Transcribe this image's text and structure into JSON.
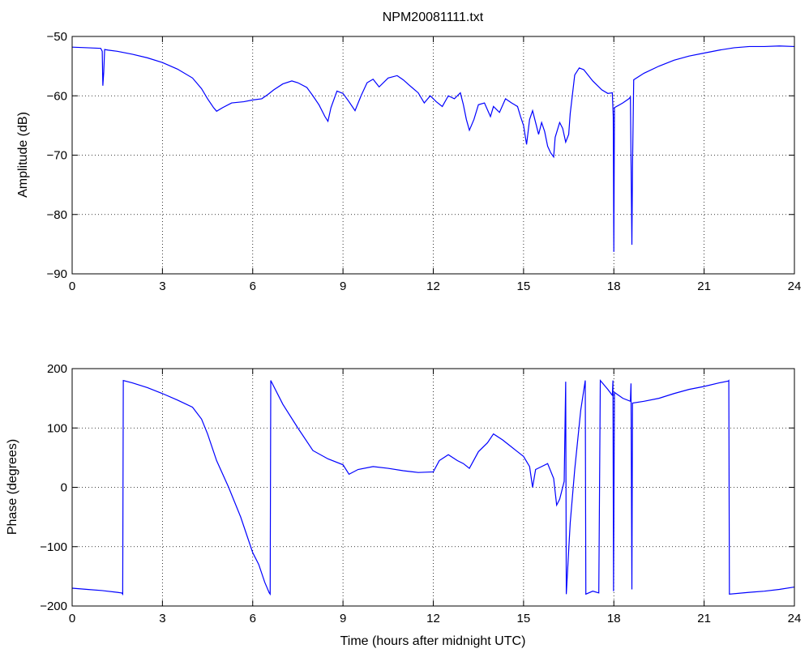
{
  "figure": {
    "title": "NPM20081111.txt"
  },
  "chart_data": [
    {
      "type": "line",
      "title": "NPM20081111.txt",
      "xlabel": "",
      "ylabel": "Amplitude (dB)",
      "xlim": [
        0,
        24
      ],
      "ylim": [
        -90,
        -50
      ],
      "xticks": [
        "0",
        "3",
        "6",
        "9",
        "12",
        "15",
        "18",
        "21",
        "24"
      ],
      "yticks": [
        "−50",
        "−60",
        "−70",
        "−80",
        "−90"
      ],
      "grid": true,
      "color": "#0000ff",
      "series": [
        {
          "points": [
            [
              0.0,
              -51.8
            ],
            [
              0.5,
              -51.9
            ],
            [
              0.95,
              -52.0
            ],
            [
              1.0,
              -52.5
            ],
            [
              1.02,
              -58.3
            ],
            [
              1.05,
              -56.0
            ],
            [
              1.08,
              -52.2
            ],
            [
              1.2,
              -52.3
            ],
            [
              1.5,
              -52.5
            ],
            [
              2.0,
              -53.0
            ],
            [
              2.5,
              -53.6
            ],
            [
              3.0,
              -54.4
            ],
            [
              3.5,
              -55.5
            ],
            [
              4.0,
              -57.0
            ],
            [
              4.3,
              -58.8
            ],
            [
              4.5,
              -60.5
            ],
            [
              4.7,
              -62.0
            ],
            [
              4.8,
              -62.6
            ],
            [
              5.0,
              -62.0
            ],
            [
              5.3,
              -61.2
            ],
            [
              5.7,
              -61.0
            ],
            [
              6.0,
              -60.7
            ],
            [
              6.3,
              -60.5
            ],
            [
              6.5,
              -59.8
            ],
            [
              6.7,
              -59.0
            ],
            [
              7.0,
              -58.0
            ],
            [
              7.3,
              -57.5
            ],
            [
              7.5,
              -57.8
            ],
            [
              7.8,
              -58.6
            ],
            [
              8.0,
              -60.0
            ],
            [
              8.2,
              -61.5
            ],
            [
              8.4,
              -63.5
            ],
            [
              8.5,
              -64.3
            ],
            [
              8.6,
              -62.0
            ],
            [
              8.8,
              -59.2
            ],
            [
              9.0,
              -59.6
            ],
            [
              9.2,
              -61.0
            ],
            [
              9.4,
              -62.5
            ],
            [
              9.6,
              -60.0
            ],
            [
              9.8,
              -57.8
            ],
            [
              10.0,
              -57.2
            ],
            [
              10.2,
              -58.5
            ],
            [
              10.5,
              -57.0
            ],
            [
              10.8,
              -56.6
            ],
            [
              11.0,
              -57.3
            ],
            [
              11.2,
              -58.2
            ],
            [
              11.5,
              -59.5
            ],
            [
              11.7,
              -61.2
            ],
            [
              11.9,
              -60.0
            ],
            [
              12.1,
              -61.0
            ],
            [
              12.3,
              -61.8
            ],
            [
              12.5,
              -60.0
            ],
            [
              12.7,
              -60.5
            ],
            [
              12.9,
              -59.5
            ],
            [
              13.0,
              -61.5
            ],
            [
              13.1,
              -64.0
            ],
            [
              13.2,
              -65.8
            ],
            [
              13.35,
              -64.0
            ],
            [
              13.5,
              -61.5
            ],
            [
              13.7,
              -61.2
            ],
            [
              13.9,
              -63.5
            ],
            [
              14.0,
              -61.8
            ],
            [
              14.2,
              -62.8
            ],
            [
              14.4,
              -60.5
            ],
            [
              14.6,
              -61.2
            ],
            [
              14.8,
              -61.8
            ],
            [
              14.9,
              -63.5
            ],
            [
              15.0,
              -65.0
            ],
            [
              15.1,
              -68.2
            ],
            [
              15.2,
              -64.0
            ],
            [
              15.3,
              -62.5
            ],
            [
              15.4,
              -64.5
            ],
            [
              15.5,
              -66.5
            ],
            [
              15.6,
              -64.5
            ],
            [
              15.7,
              -66.0
            ],
            [
              15.8,
              -68.5
            ],
            [
              15.9,
              -69.6
            ],
            [
              16.0,
              -70.3
            ],
            [
              16.05,
              -67.0
            ],
            [
              16.2,
              -64.5
            ],
            [
              16.3,
              -65.5
            ],
            [
              16.4,
              -67.8
            ],
            [
              16.5,
              -66.5
            ],
            [
              16.55,
              -63.0
            ],
            [
              16.7,
              -56.5
            ],
            [
              16.85,
              -55.3
            ],
            [
              17.0,
              -55.6
            ],
            [
              17.3,
              -57.5
            ],
            [
              17.6,
              -59.0
            ],
            [
              17.8,
              -59.6
            ],
            [
              17.95,
              -59.5
            ],
            [
              17.98,
              -63.5
            ],
            [
              18.0,
              -86.3
            ],
            [
              18.02,
              -62.0
            ],
            [
              18.3,
              -61.2
            ],
            [
              18.5,
              -60.5
            ],
            [
              18.55,
              -60.2
            ],
            [
              18.6,
              -85.1
            ],
            [
              18.62,
              -72.0
            ],
            [
              18.66,
              -57.3
            ],
            [
              19.0,
              -56.2
            ],
            [
              19.5,
              -55.0
            ],
            [
              20.0,
              -54.0
            ],
            [
              20.5,
              -53.3
            ],
            [
              21.0,
              -52.8
            ],
            [
              21.5,
              -52.3
            ],
            [
              22.0,
              -51.9
            ],
            [
              22.5,
              -51.7
            ],
            [
              23.0,
              -51.7
            ],
            [
              23.5,
              -51.6
            ],
            [
              24.0,
              -51.7
            ]
          ]
        }
      ]
    },
    {
      "type": "line",
      "title": "",
      "xlabel": "Time (hours after midnight UTC)",
      "ylabel": "Phase (degrees)",
      "xlim": [
        0,
        24
      ],
      "ylim": [
        -200,
        200
      ],
      "xticks": [
        "0",
        "3",
        "6",
        "9",
        "12",
        "15",
        "18",
        "21",
        "24"
      ],
      "yticks": [
        "200",
        "100",
        "0",
        "−100",
        "−200"
      ],
      "grid": true,
      "color": "#0000ff",
      "series": [
        {
          "points": [
            [
              0.0,
              -170.0
            ],
            [
              0.5,
              -172.0
            ],
            [
              1.0,
              -174.0
            ],
            [
              1.5,
              -177.0
            ],
            [
              1.65,
              -178.0
            ],
            [
              1.68,
              -180.0
            ],
            [
              1.7,
              180.0
            ],
            [
              2.0,
              176.0
            ],
            [
              2.5,
              168.0
            ],
            [
              3.0,
              158.0
            ],
            [
              3.5,
              147.0
            ],
            [
              4.0,
              135.0
            ],
            [
              4.3,
              115.0
            ],
            [
              4.5,
              90.0
            ],
            [
              4.8,
              45.0
            ],
            [
              5.2,
              0.0
            ],
            [
              5.6,
              -50.0
            ],
            [
              6.0,
              -110.0
            ],
            [
              6.2,
              -130.0
            ],
            [
              6.4,
              -160.0
            ],
            [
              6.55,
              -178.0
            ],
            [
              6.58,
              -180.0
            ],
            [
              6.6,
              180.0
            ],
            [
              7.0,
              140.0
            ],
            [
              7.5,
              100.0
            ],
            [
              8.0,
              62.0
            ],
            [
              8.5,
              48.0
            ],
            [
              9.0,
              38.0
            ],
            [
              9.2,
              22.0
            ],
            [
              9.5,
              30.0
            ],
            [
              10.0,
              35.0
            ],
            [
              10.5,
              32.0
            ],
            [
              11.0,
              28.0
            ],
            [
              11.5,
              25.0
            ],
            [
              12.0,
              26.0
            ],
            [
              12.2,
              45.0
            ],
            [
              12.5,
              55.0
            ],
            [
              12.8,
              45.0
            ],
            [
              13.0,
              40.0
            ],
            [
              13.2,
              32.0
            ],
            [
              13.5,
              60.0
            ],
            [
              13.8,
              75.0
            ],
            [
              14.0,
              90.0
            ],
            [
              14.3,
              80.0
            ],
            [
              14.5,
              72.0
            ],
            [
              14.8,
              60.0
            ],
            [
              15.0,
              52.0
            ],
            [
              15.2,
              35.0
            ],
            [
              15.3,
              0.0
            ],
            [
              15.4,
              30.0
            ],
            [
              15.6,
              35.0
            ],
            [
              15.8,
              40.0
            ],
            [
              16.0,
              15.0
            ],
            [
              16.1,
              -30.0
            ],
            [
              16.2,
              -20.0
            ],
            [
              16.35,
              10.0
            ],
            [
              16.4,
              178.0
            ],
            [
              16.42,
              -180.0
            ],
            [
              16.55,
              -60.0
            ],
            [
              16.7,
              30.0
            ],
            [
              16.9,
              130.0
            ],
            [
              17.05,
              180.0
            ],
            [
              17.07,
              -180.0
            ],
            [
              17.3,
              -175.0
            ],
            [
              17.5,
              -178.0
            ],
            [
              17.55,
              180.0
            ],
            [
              17.8,
              165.0
            ],
            [
              17.95,
              155.0
            ],
            [
              17.97,
              180.0
            ],
            [
              17.99,
              -175.0
            ],
            [
              18.02,
              160.0
            ],
            [
              18.3,
              150.0
            ],
            [
              18.55,
              145.0
            ],
            [
              18.57,
              175.0
            ],
            [
              18.6,
              -172.0
            ],
            [
              18.62,
              142.0
            ],
            [
              19.0,
              145.0
            ],
            [
              19.5,
              150.0
            ],
            [
              20.0,
              158.0
            ],
            [
              20.5,
              165.0
            ],
            [
              21.0,
              170.0
            ],
            [
              21.5,
              176.0
            ],
            [
              21.8,
              179.0
            ],
            [
              21.82,
              180.0
            ],
            [
              21.84,
              -180.0
            ],
            [
              22.5,
              -177.0
            ],
            [
              23.0,
              -175.0
            ],
            [
              23.5,
              -172.0
            ],
            [
              24.0,
              -168.0
            ]
          ]
        }
      ]
    }
  ]
}
